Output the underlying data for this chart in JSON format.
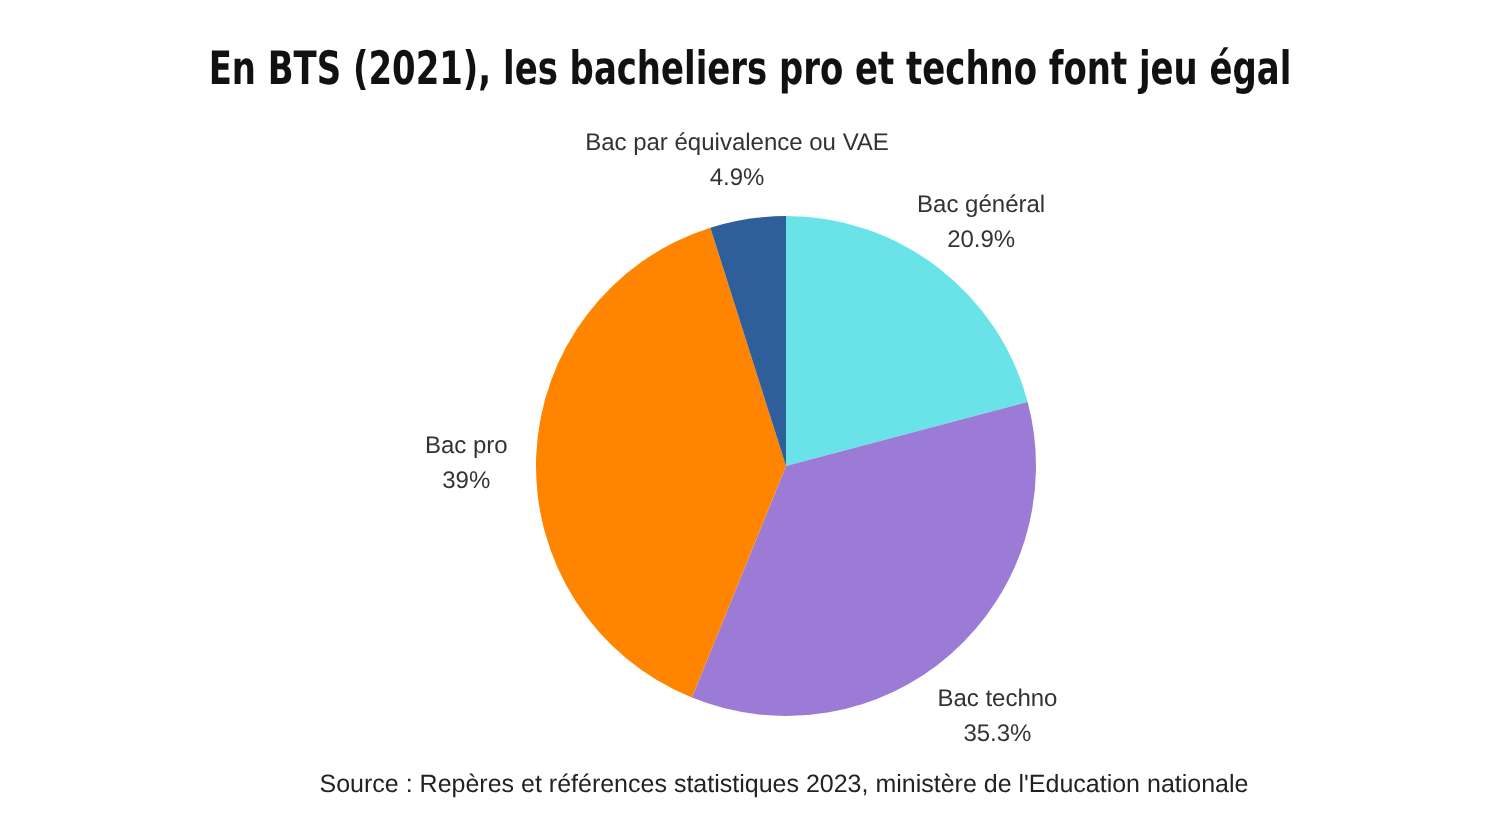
{
  "chart_data": {
    "type": "pie",
    "title": "En BTS (2021), les bacheliers pro et techno font jeu égal",
    "categories": [
      "Bac général",
      "Bac techno",
      "Bac pro",
      "Bac par équivalence ou VAE"
    ],
    "values": [
      20.9,
      35.3,
      39,
      4.9
    ],
    "colors": [
      "#6ae3e8",
      "#9b7bd6",
      "#ff8400",
      "#2e5f9a"
    ],
    "value_labels": [
      "20.9%",
      "35.3%",
      "39%",
      "4.9%"
    ],
    "annotations": [
      "Source : Repères et références statistiques 2023, ministère de l'Education nationale"
    ]
  }
}
